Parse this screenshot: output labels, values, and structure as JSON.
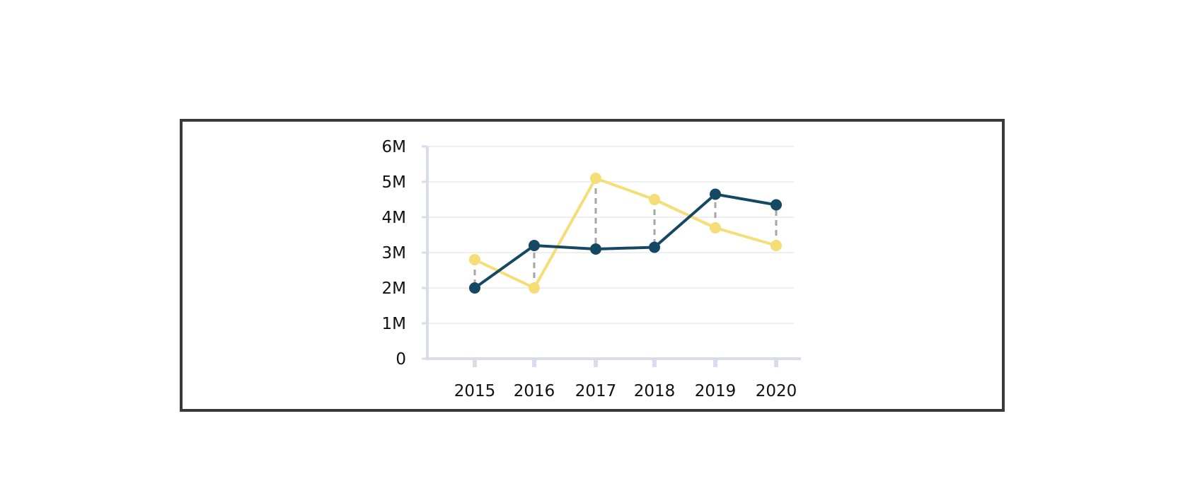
{
  "chart_data": {
    "type": "line",
    "categories": [
      "2015",
      "2016",
      "2017",
      "2018",
      "2019",
      "2020"
    ],
    "series": [
      {
        "color": "#f5dd77",
        "values": [
          2800000,
          2000000,
          5100000,
          4500000,
          3700000,
          3200000
        ]
      },
      {
        "color": "#154863",
        "values": [
          2000000,
          3200000,
          3100000,
          3150000,
          4650000,
          4350000
        ]
      }
    ],
    "yticks": [
      "0",
      "1M",
      "2M",
      "3M",
      "4M",
      "5M",
      "6M"
    ],
    "ylim": [
      0,
      6000000
    ],
    "grid": true,
    "connector_color": "#a5a5a5",
    "axis_color": "#d9dcea",
    "grid_color": "#eeeeee"
  }
}
